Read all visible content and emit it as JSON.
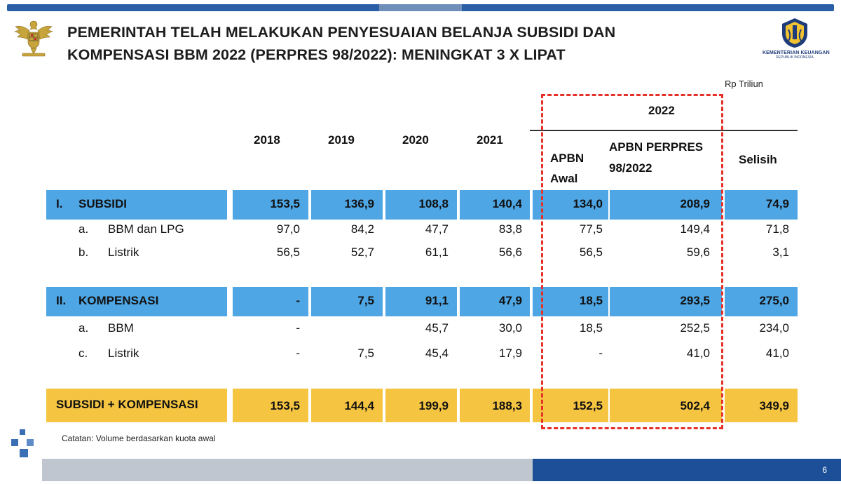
{
  "title_line1": "PEMERINTAH TELAH MELAKUKAN PENYESUAIAN BELANJA SUBSIDI DAN",
  "title_line2": "KOMPENSASI BBM 2022 (PERPRES 98/2022): MENINGKAT 3 X LIPAT",
  "unit": "Rp Triliun",
  "logo_right_line1": "KEMENTERIAN KEUANGAN",
  "logo_right_line2": "REPUBLIK INDONESIA",
  "header": {
    "y2018": "2018",
    "y2019": "2019",
    "y2020": "2020",
    "y2021": "2021",
    "y2022": "2022",
    "apbn_awal_1": "APBN",
    "apbn_awal_2": "Awal",
    "perpres_1": "APBN PERPRES",
    "perpres_2": "98/2022",
    "selisih": "Selisih"
  },
  "rows": {
    "subsidi": {
      "num": "I.",
      "label": "SUBSIDI",
      "v": [
        "153,5",
        "136,9",
        "108,8",
        "140,4",
        "134,0",
        "208,9",
        "74,9"
      ]
    },
    "bbm_lpg": {
      "num": "a.",
      "label": "BBM dan LPG",
      "v": [
        "97,0",
        "84,2",
        "47,7",
        "83,8",
        "77,5",
        "149,4",
        "71,8"
      ]
    },
    "listrik1": {
      "num": "b.",
      "label": "Listrik",
      "v": [
        "56,5",
        "52,7",
        "61,1",
        "56,6",
        "56,5",
        "59,6",
        "3,1"
      ]
    },
    "kompensasi": {
      "num": "II.",
      "label": "KOMPENSASI",
      "v": [
        "-",
        "7,5",
        "91,1",
        "47,9",
        "18,5",
        "293,5",
        "275,0"
      ]
    },
    "bbm": {
      "num": "a.",
      "label": "BBM",
      "v": [
        "-",
        "",
        "45,7",
        "30,0",
        "18,5",
        "252,5",
        "234,0"
      ]
    },
    "listrik2": {
      "num": "c.",
      "label": "Listrik",
      "v": [
        "-",
        "7,5",
        "45,4",
        "17,9",
        "-",
        "41,0",
        "41,0"
      ]
    },
    "total": {
      "label": "SUBSIDI + KOMPENSASI",
      "v": [
        "153,5",
        "144,4",
        "199,9",
        "188,3",
        "152,5",
        "502,4",
        "349,9"
      ]
    }
  },
  "note": "Catatan: Volume berdasarkan kuota awal",
  "page_number": "6",
  "colors": {
    "blue_band": "#4ea6e4",
    "gold_band": "#f5c542",
    "dashed_box": "#e53228"
  }
}
